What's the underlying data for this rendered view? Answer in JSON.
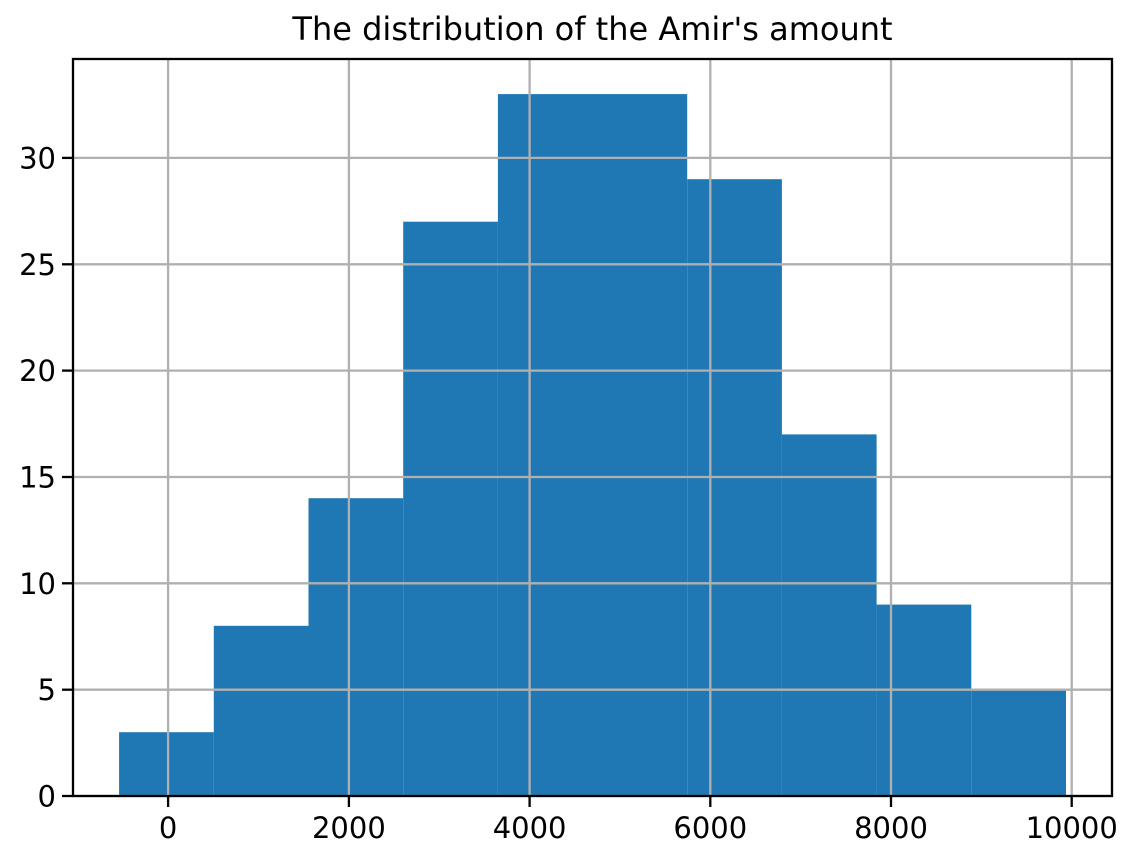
{
  "chart_data": {
    "type": "bar",
    "subtype": "histogram",
    "title": "The distribution of the Amir's amount",
    "xlabel": "",
    "ylabel": "",
    "bin_edges": [
      -543,
      505,
      1553,
      2601,
      3649,
      4697,
      5745,
      6793,
      7841,
      8889,
      9937
    ],
    "counts": [
      3,
      8,
      14,
      27,
      33,
      33,
      29,
      17,
      9,
      5
    ],
    "total_count": 178,
    "xlim": [
      -1053,
      10446
    ],
    "ylim": [
      0,
      34.65
    ],
    "xticks": [
      0,
      2000,
      4000,
      6000,
      8000,
      10000
    ],
    "yticks": [
      0,
      5,
      10,
      15,
      20,
      25,
      30
    ],
    "grid": true,
    "grid_on_top": true,
    "legend": false,
    "bar_color": "#1f77b4",
    "grid_color": "#b0b0b0",
    "spine_color": "#000000",
    "text_color": "#000000",
    "background_color": "#ffffff"
  }
}
